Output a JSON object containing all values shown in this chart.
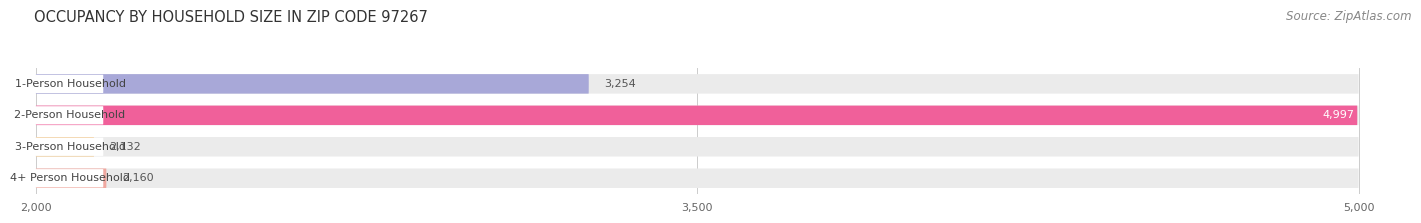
{
  "title": "OCCUPANCY BY HOUSEHOLD SIZE IN ZIP CODE 97267",
  "source": "Source: ZipAtlas.com",
  "categories": [
    "1-Person Household",
    "2-Person Household",
    "3-Person Household",
    "4+ Person Household"
  ],
  "values": [
    3254,
    4997,
    2132,
    2160
  ],
  "bar_colors": [
    "#a8a8d8",
    "#f0609a",
    "#f0c890",
    "#f0a8a0"
  ],
  "x_min": 2000,
  "x_max": 5000,
  "x_ticks": [
    2000,
    3500,
    5000
  ],
  "background_color": "#ffffff",
  "bar_bg_color": "#ebebeb",
  "label_bg_color": "#ffffff",
  "title_fontsize": 10.5,
  "source_fontsize": 8.5,
  "label_fontsize": 8,
  "value_fontsize": 8,
  "bar_height": 0.62,
  "bar_gap": 0.38
}
